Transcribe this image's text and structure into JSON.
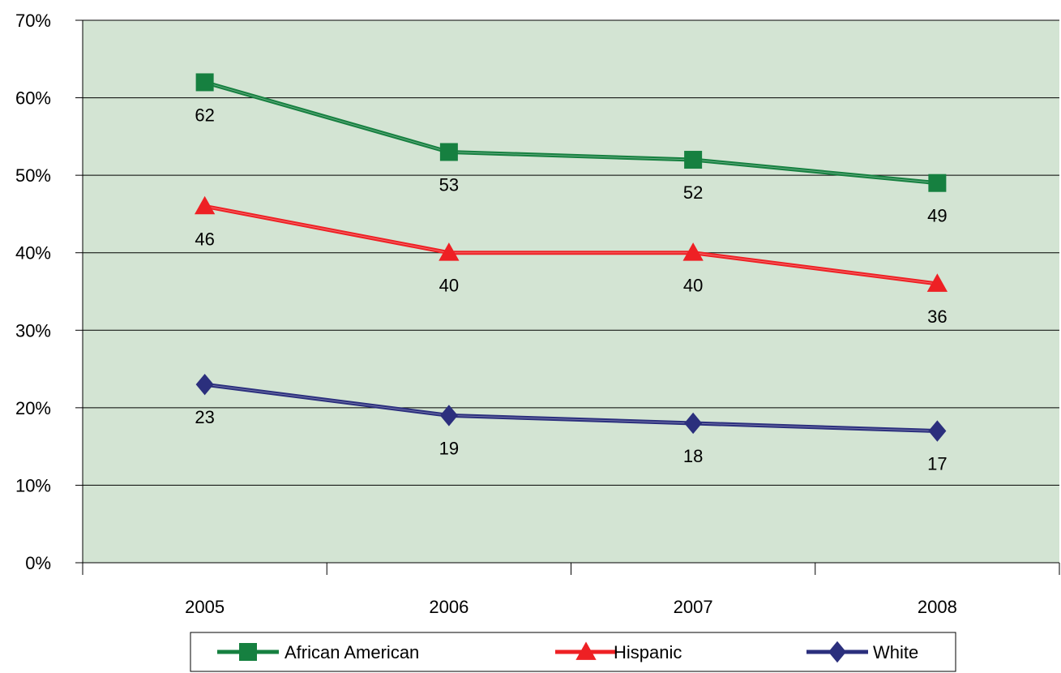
{
  "chart_data": {
    "type": "line",
    "categories": [
      "2005",
      "2006",
      "2007",
      "2008"
    ],
    "ylim": [
      0,
      70
    ],
    "y_ticks": [
      "0%",
      "10%",
      "20%",
      "30%",
      "40%",
      "50%",
      "60%",
      "70%"
    ],
    "grid": true,
    "legend_position": "bottom",
    "plot_background": "#d3e4d3",
    "series": [
      {
        "name": "African American",
        "values": [
          62,
          53,
          52,
          49
        ],
        "labels": [
          "62",
          "53",
          "52",
          "49"
        ],
        "color": "#168040",
        "marker": "square"
      },
      {
        "name": "Hispanic",
        "values": [
          46,
          40,
          40,
          36
        ],
        "labels": [
          "46",
          "40",
          "40",
          "36"
        ],
        "color": "#ee2024",
        "marker": "triangle"
      },
      {
        "name": "White",
        "values": [
          23,
          19,
          18,
          17
        ],
        "labels": [
          "23",
          "19",
          "18",
          "17"
        ],
        "color": "#2b2f7d",
        "marker": "diamond"
      }
    ]
  }
}
